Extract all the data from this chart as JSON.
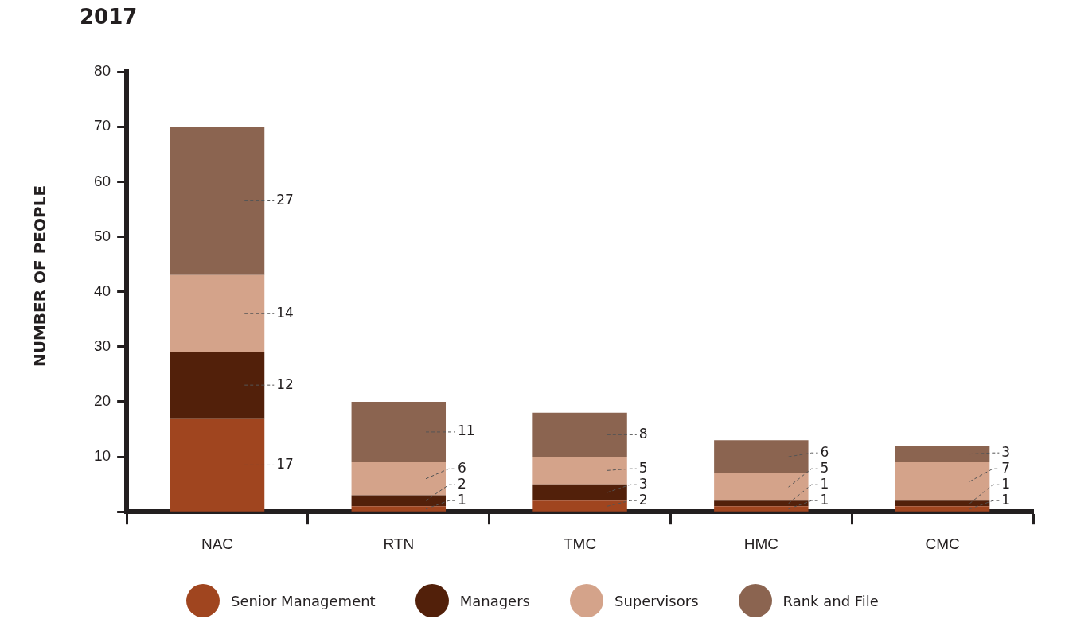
{
  "chart_data": {
    "type": "bar",
    "title": "2017",
    "ylabel": "NUMBER OF PEOPLE",
    "stacked": true,
    "data_labels": true,
    "legend": "bottom",
    "grid": false,
    "categories": [
      "NAC",
      "RTN",
      "TMC",
      "HMC",
      "CMC"
    ],
    "ylim": [
      0,
      80
    ],
    "yticks": [
      {
        "value": 0,
        "label": null
      },
      10,
      20,
      30,
      40,
      50,
      60,
      70,
      80
    ],
    "series": [
      {
        "name": "Senior Management",
        "color": "#a0451f",
        "values": [
          17,
          1,
          2,
          1,
          1
        ]
      },
      {
        "name": "Managers",
        "color": "#52200a",
        "values": [
          12,
          2,
          3,
          1,
          1
        ]
      },
      {
        "name": "Supervisors",
        "color": "#d4a38a",
        "values": [
          14,
          6,
          5,
          5,
          7
        ]
      },
      {
        "name": "Rank and File",
        "color": "#8b6450",
        "values": [
          27,
          11,
          8,
          6,
          3
        ]
      }
    ]
  }
}
